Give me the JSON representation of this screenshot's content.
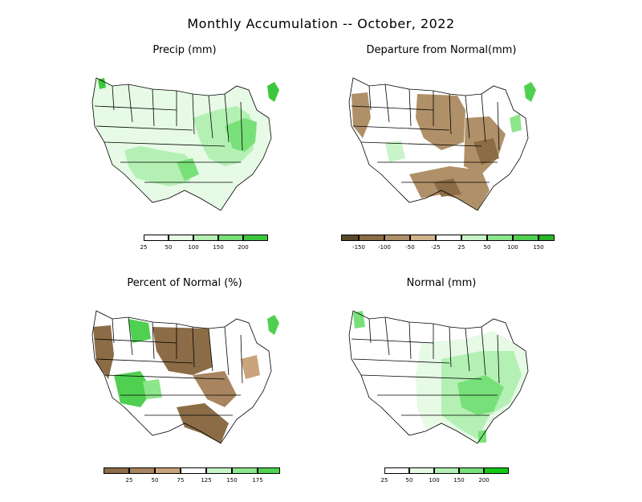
{
  "title": "Monthly Accumulation -- October, 2022",
  "panels": [
    {
      "id": "precip",
      "title": "Precip (mm)",
      "colorbar": {
        "colors": [
          "#ffffff",
          "#e6fae6",
          "#b4f0b4",
          "#78e078",
          "#3cc83c"
        ],
        "ticks": [
          "25",
          "50",
          "100",
          "150",
          "200"
        ]
      }
    },
    {
      "id": "departure",
      "title": "Departure from Normal(mm)",
      "colorbar": {
        "colors": [
          "#5a4a2a",
          "#8b6c46",
          "#b09068",
          "#d2b48c",
          "#ffffff",
          "#c8f5c8",
          "#8ce68c",
          "#50d050",
          "#28b428"
        ],
        "ticks": [
          "-150",
          "-100",
          "-50",
          "-25",
          "25",
          "50",
          "100",
          "150"
        ]
      }
    },
    {
      "id": "percent",
      "title": "Percent of Normal (%)",
      "colorbar": {
        "colors": [
          "#8b6c46",
          "#a88560",
          "#c9a47c",
          "#ffffff",
          "#c8f5c8",
          "#8ce68c",
          "#50d050"
        ],
        "ticks": [
          "25",
          "50",
          "75",
          "125",
          "150",
          "175"
        ]
      }
    },
    {
      "id": "normal",
      "title": "Normal (mm)",
      "colorbar": {
        "colors": [
          "#ffffff",
          "#e6fae6",
          "#b4f0b4",
          "#78e078",
          "#14c814"
        ],
        "ticks": [
          "25",
          "50",
          "100",
          "150",
          "200"
        ]
      }
    }
  ]
}
